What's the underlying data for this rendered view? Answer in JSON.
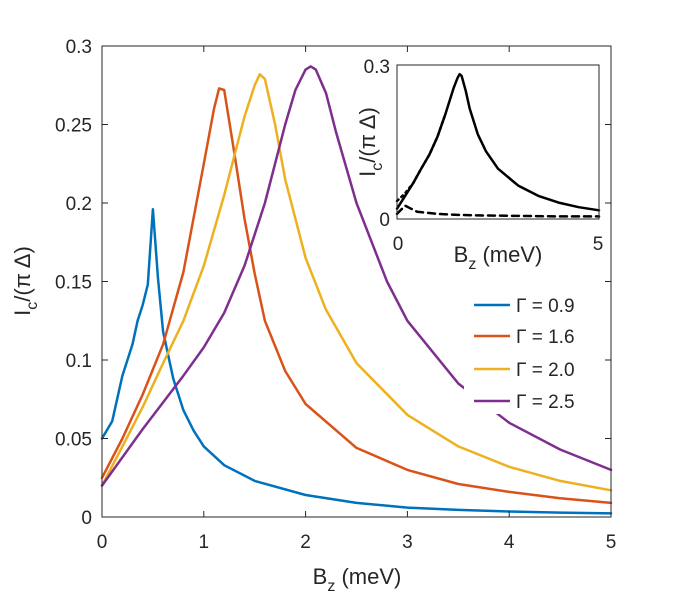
{
  "chart_data": [
    {
      "id": "main",
      "type": "line",
      "xlabel": "B",
      "xlabel_sub": "z",
      "xlabel_unit": " (meV)",
      "ylabel": "I",
      "ylabel_sub": "c",
      "ylabel_rest": "/(π Δ)",
      "xlim": [
        0,
        5
      ],
      "ylim": [
        0,
        0.3
      ],
      "xticks": [
        0,
        1,
        2,
        3,
        4,
        5
      ],
      "xtick_labels": [
        "0",
        "1",
        "2",
        "3",
        "4",
        "5"
      ],
      "yticks": [
        0,
        0.05,
        0.1,
        0.15,
        0.2,
        0.25,
        0.3
      ],
      "ytick_labels": [
        "0",
        "0.05",
        "0.1",
        "0.15",
        "0.2",
        "0.25",
        "0.3"
      ],
      "legend_position": "center-right",
      "series": [
        {
          "name": "Γ = 0.9",
          "color": "#0072BD",
          "x": [
            0,
            0.1,
            0.2,
            0.3,
            0.35,
            0.4,
            0.45,
            0.5,
            0.55,
            0.6,
            0.7,
            0.8,
            0.9,
            1.0,
            1.2,
            1.5,
            2.0,
            2.5,
            3.0,
            3.5,
            4.0,
            4.5,
            5.0
          ],
          "y": [
            0.05,
            0.061,
            0.09,
            0.11,
            0.125,
            0.135,
            0.148,
            0.196,
            0.152,
            0.118,
            0.088,
            0.068,
            0.055,
            0.045,
            0.033,
            0.023,
            0.014,
            0.009,
            0.006,
            0.0045,
            0.0035,
            0.0028,
            0.0023
          ]
        },
        {
          "name": "Γ = 1.6",
          "color": "#D95319",
          "x": [
            0,
            0.2,
            0.4,
            0.6,
            0.8,
            1.0,
            1.1,
            1.15,
            1.2,
            1.3,
            1.4,
            1.5,
            1.6,
            1.8,
            2.0,
            2.5,
            3.0,
            3.5,
            4.0,
            4.5,
            5.0
          ],
          "y": [
            0.025,
            0.05,
            0.078,
            0.11,
            0.156,
            0.225,
            0.26,
            0.273,
            0.272,
            0.232,
            0.19,
            0.155,
            0.125,
            0.093,
            0.072,
            0.044,
            0.03,
            0.021,
            0.016,
            0.012,
            0.009
          ]
        },
        {
          "name": "Γ = 2.0",
          "color": "#EDB120",
          "x": [
            0,
            0.2,
            0.4,
            0.6,
            0.8,
            1.0,
            1.2,
            1.4,
            1.5,
            1.55,
            1.6,
            1.7,
            1.8,
            2.0,
            2.2,
            2.5,
            3.0,
            3.5,
            4.0,
            4.5,
            5.0
          ],
          "y": [
            0.02,
            0.045,
            0.07,
            0.098,
            0.125,
            0.16,
            0.205,
            0.255,
            0.275,
            0.282,
            0.279,
            0.25,
            0.215,
            0.165,
            0.132,
            0.098,
            0.065,
            0.045,
            0.032,
            0.023,
            0.017
          ]
        },
        {
          "name": "Γ = 2.5",
          "color": "#7E2F8E",
          "x": [
            0,
            0.2,
            0.4,
            0.6,
            0.8,
            1.0,
            1.2,
            1.4,
            1.6,
            1.8,
            1.9,
            2.0,
            2.05,
            2.1,
            2.2,
            2.3,
            2.5,
            2.8,
            3.0,
            3.5,
            4.0,
            4.5,
            5.0
          ],
          "y": [
            0.02,
            0.038,
            0.056,
            0.073,
            0.09,
            0.108,
            0.13,
            0.16,
            0.2,
            0.25,
            0.272,
            0.285,
            0.287,
            0.285,
            0.27,
            0.245,
            0.2,
            0.15,
            0.125,
            0.085,
            0.06,
            0.043,
            0.03
          ]
        }
      ]
    },
    {
      "id": "inset",
      "type": "line",
      "xlabel": "B",
      "xlabel_sub": "z",
      "xlabel_unit": " (meV)",
      "ylabel": "I",
      "ylabel_sub": "c",
      "ylabel_rest": "/(π Δ)",
      "xlim": [
        0,
        5
      ],
      "ylim": [
        0,
        0.3
      ],
      "xtick_labels": [
        "0",
        "5"
      ],
      "ytick_labels": [
        "0",
        "0.3"
      ],
      "series": [
        {
          "name": "solid",
          "color": "#000000",
          "style": "solid",
          "x": [
            0,
            0.2,
            0.4,
            0.6,
            0.8,
            1.0,
            1.2,
            1.4,
            1.5,
            1.55,
            1.6,
            1.7,
            1.8,
            2.0,
            2.2,
            2.5,
            3.0,
            3.5,
            4.0,
            4.5,
            5.0
          ],
          "y": [
            0.02,
            0.045,
            0.07,
            0.098,
            0.125,
            0.16,
            0.205,
            0.255,
            0.275,
            0.282,
            0.279,
            0.25,
            0.215,
            0.165,
            0.132,
            0.098,
            0.065,
            0.045,
            0.032,
            0.023,
            0.017
          ]
        },
        {
          "name": "dashed",
          "color": "#000000",
          "style": "dashed",
          "x": [
            0,
            0.2,
            0.5,
            1.0,
            1.5,
            2.0,
            3.0,
            4.0,
            5.0
          ],
          "y": [
            0.01,
            0.026,
            0.014,
            0.01,
            0.008,
            0.007,
            0.006,
            0.005,
            0.005
          ]
        },
        {
          "name": "dotted",
          "color": "#000000",
          "style": "dotted",
          "x": [
            0,
            0.2,
            0.4,
            0.6,
            0.8,
            1.0,
            1.2
          ],
          "y": [
            0.035,
            0.05,
            0.07,
            0.098,
            0.125,
            0.16,
            0.205
          ]
        }
      ]
    }
  ]
}
